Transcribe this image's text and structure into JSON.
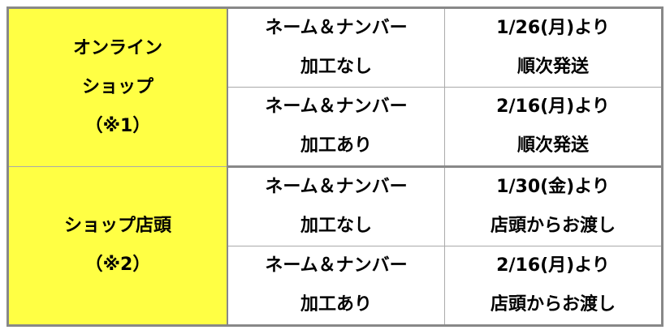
{
  "groups": [
    {
      "label": [
        "オンライン",
        "ショップ",
        "（※1）"
      ],
      "rows": [
        {
          "type": [
            "ネーム＆ナンバー",
            "加工なし"
          ],
          "date": [
            "1/26(月)より",
            "順次発送"
          ]
        },
        {
          "type": [
            "ネーム＆ナンバー",
            "加工あり"
          ],
          "date": [
            "2/16(月)より",
            "順次発送"
          ]
        }
      ]
    },
    {
      "label": [
        "ショップ店頭",
        "（※2）"
      ],
      "rows": [
        {
          "type": [
            "ネーム＆ナンバー",
            "加工なし"
          ],
          "date": [
            "1/30(金)より",
            "店頭からお渡し"
          ]
        },
        {
          "type": [
            "ネーム＆ナンバー",
            "加工あり"
          ],
          "date": [
            "2/16(月)より",
            "店頭からお渡し"
          ]
        }
      ]
    }
  ],
  "colors": {
    "group_bg": "#ffff44",
    "border": "#888888"
  }
}
